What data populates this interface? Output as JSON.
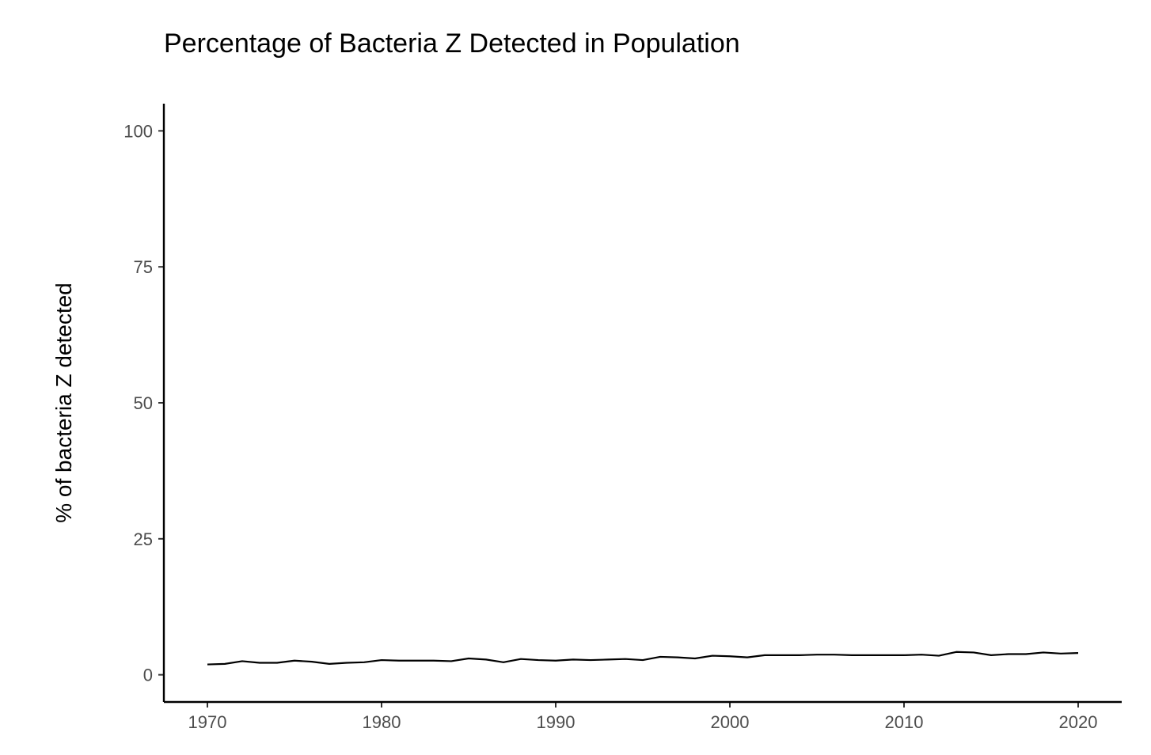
{
  "chart_data": {
    "type": "line",
    "title": "Percentage of Bacteria Z Detected in Population",
    "xlabel": "",
    "ylabel": "% of bacteria Z detected",
    "xlim": [
      1967.5,
      2022.5
    ],
    "ylim": [
      -5,
      105
    ],
    "x_ticks": [
      1970,
      1980,
      1990,
      2000,
      2010,
      2020
    ],
    "x_tick_labels": [
      "1970",
      "1980",
      "1990",
      "2000",
      "2010",
      "2020"
    ],
    "y_ticks": [
      0,
      25,
      50,
      75,
      100
    ],
    "y_tick_labels": [
      "0",
      "25",
      "50",
      "75",
      "100"
    ],
    "grid": false,
    "legend": "none",
    "line_color": "#000000",
    "series": [
      {
        "x": [
          1970,
          1971,
          1972,
          1973,
          1974,
          1975,
          1976,
          1977,
          1978,
          1979,
          1980,
          1981,
          1982,
          1983,
          1984,
          1985,
          1986,
          1987,
          1988,
          1989,
          1990,
          1991,
          1992,
          1993,
          1994,
          1995,
          1996,
          1997,
          1998,
          1999,
          2000,
          2001,
          2002,
          2003,
          2004,
          2005,
          2006,
          2007,
          2008,
          2009,
          2010,
          2011,
          2012,
          2013,
          2014,
          2015,
          2016,
          2017,
          2018,
          2019,
          2020
        ],
        "values": [
          1.9,
          2.0,
          2.5,
          2.2,
          2.2,
          2.6,
          2.4,
          2.0,
          2.2,
          2.3,
          2.7,
          2.6,
          2.6,
          2.6,
          2.5,
          3.0,
          2.8,
          2.3,
          2.9,
          2.7,
          2.6,
          2.8,
          2.7,
          2.8,
          2.9,
          2.7,
          3.3,
          3.2,
          3.0,
          3.5,
          3.4,
          3.2,
          3.6,
          3.6,
          3.6,
          3.7,
          3.7,
          3.6,
          3.6,
          3.6,
          3.6,
          3.7,
          3.5,
          4.2,
          4.1,
          3.6,
          3.8,
          3.8,
          4.1,
          3.9,
          4.0
        ]
      }
    ]
  }
}
